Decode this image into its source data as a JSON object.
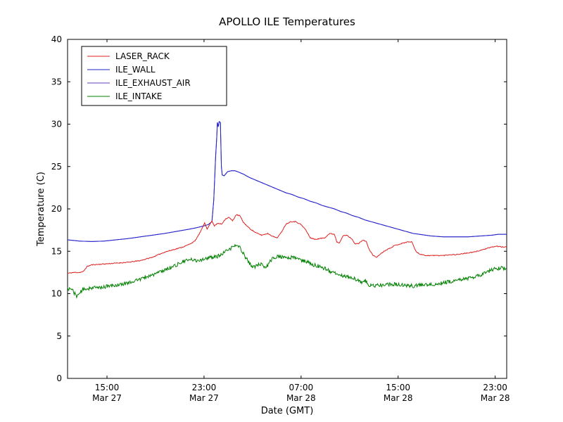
{
  "figure": {
    "title": "APOLLO ILE Temperatures",
    "background": "#ffffff",
    "frame_color": "#000000"
  },
  "chart_data": {
    "type": "line",
    "title": "APOLLO ILE Temperatures",
    "xlabel": "Date (GMT)",
    "ylabel": "Temperature (C)",
    "ylim": [
      0,
      40
    ],
    "xlim_hours": [
      0,
      36.2
    ],
    "grid": false,
    "legend_position": "upper-left",
    "yticks": [
      0,
      5,
      10,
      15,
      20,
      25,
      30,
      35,
      40
    ],
    "xticks": [
      {
        "t": 3.25,
        "time": "15:00",
        "date": "Mar 27"
      },
      {
        "t": 11.25,
        "time": "23:00",
        "date": "Mar 27"
      },
      {
        "t": 19.25,
        "time": "07:00",
        "date": "Mar 28"
      },
      {
        "t": 27.25,
        "time": "15:00",
        "date": "Mar 28"
      },
      {
        "t": 35.25,
        "time": "23:00",
        "date": "Mar 28"
      }
    ],
    "series": [
      {
        "name": "LASER_RACK",
        "color": "#dd2222",
        "noise": 0.05,
        "seed": 11,
        "points": [
          [
            0,
            12.4
          ],
          [
            0.5,
            12.5
          ],
          [
            1,
            12.5
          ],
          [
            1.3,
            12.6
          ],
          [
            1.6,
            13.2
          ],
          [
            2,
            13.4
          ],
          [
            3,
            13.5
          ],
          [
            4,
            13.6
          ],
          [
            5,
            13.7
          ],
          [
            6,
            13.9
          ],
          [
            7,
            14.3
          ],
          [
            8,
            14.9
          ],
          [
            9,
            15.3
          ],
          [
            9.5,
            15.5
          ],
          [
            10,
            15.8
          ],
          [
            10.5,
            16.2
          ],
          [
            11,
            17.4
          ],
          [
            11.3,
            18.4
          ],
          [
            11.5,
            17.6
          ],
          [
            11.9,
            18.6
          ],
          [
            12.1,
            18.0
          ],
          [
            12.4,
            18.3
          ],
          [
            12.7,
            18.2
          ],
          [
            13,
            18.8
          ],
          [
            13.3,
            19.0
          ],
          [
            13.6,
            18.6
          ],
          [
            13.9,
            19.3
          ],
          [
            14.2,
            19.2
          ],
          [
            14.5,
            18.4
          ],
          [
            15,
            17.7
          ],
          [
            15.5,
            17.2
          ],
          [
            16,
            16.9
          ],
          [
            16.5,
            17.1
          ],
          [
            17,
            16.7
          ],
          [
            17.3,
            16.6
          ],
          [
            17.6,
            17.2
          ],
          [
            18,
            18.2
          ],
          [
            18.4,
            18.5
          ],
          [
            18.8,
            18.5
          ],
          [
            19.2,
            18.2
          ],
          [
            19.6,
            17.6
          ],
          [
            20,
            16.6
          ],
          [
            20.4,
            16.4
          ],
          [
            20.8,
            16.5
          ],
          [
            21.2,
            16.6
          ],
          [
            21.6,
            17.1
          ],
          [
            22,
            17.0
          ],
          [
            22.2,
            16.1
          ],
          [
            22.4,
            16.0
          ],
          [
            22.7,
            16.8
          ],
          [
            23,
            16.9
          ],
          [
            23.4,
            16.5
          ],
          [
            23.7,
            15.9
          ],
          [
            24,
            15.9
          ],
          [
            24.3,
            16.3
          ],
          [
            24.6,
            16.2
          ],
          [
            24.9,
            15.1
          ],
          [
            25.2,
            14.5
          ],
          [
            25.5,
            14.3
          ],
          [
            25.8,
            14.7
          ],
          [
            26.2,
            15.1
          ],
          [
            26.6,
            15.4
          ],
          [
            27,
            15.7
          ],
          [
            27.5,
            15.9
          ],
          [
            28,
            16.1
          ],
          [
            28.4,
            16.1
          ],
          [
            28.7,
            15.0
          ],
          [
            29,
            14.7
          ],
          [
            29.5,
            14.5
          ],
          [
            30,
            14.5
          ],
          [
            31,
            14.5
          ],
          [
            31.5,
            14.6
          ],
          [
            32,
            14.6
          ],
          [
            32.5,
            14.7
          ],
          [
            33,
            14.8
          ],
          [
            33.5,
            14.9
          ],
          [
            34,
            15.1
          ],
          [
            34.5,
            15.3
          ],
          [
            35,
            15.5
          ],
          [
            35.4,
            15.6
          ],
          [
            35.8,
            15.5
          ],
          [
            36.2,
            15.5
          ]
        ]
      },
      {
        "name": "ILE_WALL",
        "color": "#2222cc",
        "noise": 0.0,
        "seed": 22,
        "points": [
          [
            0,
            16.35
          ],
          [
            1,
            16.2
          ],
          [
            2,
            16.15
          ],
          [
            3,
            16.2
          ],
          [
            4,
            16.35
          ],
          [
            5,
            16.5
          ],
          [
            6,
            16.7
          ],
          [
            7,
            16.9
          ],
          [
            8,
            17.1
          ],
          [
            9,
            17.35
          ],
          [
            10,
            17.6
          ],
          [
            10.7,
            17.8
          ],
          [
            11.25,
            18.0
          ],
          [
            11.6,
            18.15
          ],
          [
            11.9,
            18.5
          ],
          [
            12.05,
            21.0
          ],
          [
            12.2,
            26.0
          ],
          [
            12.3,
            28.5
          ],
          [
            12.35,
            30.2
          ],
          [
            12.42,
            29.7
          ],
          [
            12.5,
            30.3
          ],
          [
            12.6,
            30.2
          ],
          [
            12.68,
            25.0
          ],
          [
            12.75,
            24.0
          ],
          [
            12.9,
            23.9
          ],
          [
            13.2,
            24.4
          ],
          [
            13.5,
            24.5
          ],
          [
            13.8,
            24.5
          ],
          [
            14,
            24.4
          ],
          [
            14.5,
            24.1
          ],
          [
            15,
            23.7
          ],
          [
            15.5,
            23.4
          ],
          [
            16,
            23.1
          ],
          [
            16.5,
            22.8
          ],
          [
            17,
            22.5
          ],
          [
            17.5,
            22.2
          ],
          [
            18,
            21.9
          ],
          [
            18.5,
            21.7
          ],
          [
            19,
            21.4
          ],
          [
            19.5,
            21.2
          ],
          [
            20,
            20.9
          ],
          [
            20.5,
            20.7
          ],
          [
            21,
            20.4
          ],
          [
            21.5,
            20.2
          ],
          [
            22,
            20.0
          ],
          [
            22.5,
            19.7
          ],
          [
            23,
            19.5
          ],
          [
            23.5,
            19.2
          ],
          [
            24,
            19.0
          ],
          [
            24.5,
            18.7
          ],
          [
            25,
            18.5
          ],
          [
            25.5,
            18.3
          ],
          [
            26,
            18.1
          ],
          [
            26.5,
            17.9
          ],
          [
            27,
            17.7
          ],
          [
            27.5,
            17.5
          ],
          [
            28,
            17.3
          ],
          [
            28.5,
            17.1
          ],
          [
            29,
            17.0
          ],
          [
            29.5,
            16.9
          ],
          [
            30,
            16.8
          ],
          [
            31,
            16.7
          ],
          [
            32,
            16.7
          ],
          [
            33,
            16.7
          ],
          [
            34,
            16.8
          ],
          [
            35,
            16.9
          ],
          [
            35.5,
            17.0
          ],
          [
            36.2,
            17.0
          ]
        ]
      },
      {
        "name": "ILE_EXHAUST_AIR",
        "color": "#6040c0",
        "noise": 0.0,
        "seed": 33,
        "points": [
          [
            0,
            16.35
          ],
          [
            1,
            16.2
          ],
          [
            2,
            16.15
          ],
          [
            3,
            16.2
          ],
          [
            4,
            16.35
          ],
          [
            5,
            16.5
          ],
          [
            6,
            16.7
          ],
          [
            7,
            16.9
          ],
          [
            8,
            17.1
          ],
          [
            9,
            17.35
          ],
          [
            10,
            17.6
          ],
          [
            10.7,
            17.8
          ],
          [
            11.25,
            18.0
          ],
          [
            11.6,
            18.15
          ],
          [
            11.9,
            18.5
          ],
          [
            12.05,
            21.0
          ],
          [
            12.2,
            26.0
          ],
          [
            12.3,
            28.5
          ],
          [
            12.35,
            30.2
          ],
          [
            12.42,
            29.7
          ],
          [
            12.5,
            30.3
          ],
          [
            12.6,
            30.2
          ],
          [
            12.68,
            25.0
          ],
          [
            12.75,
            24.0
          ],
          [
            12.9,
            23.9
          ],
          [
            13.2,
            24.4
          ],
          [
            13.5,
            24.5
          ],
          [
            13.8,
            24.5
          ],
          [
            14,
            24.4
          ],
          [
            14.5,
            24.1
          ],
          [
            15,
            23.7
          ],
          [
            15.5,
            23.4
          ],
          [
            16,
            23.1
          ],
          [
            16.5,
            22.8
          ],
          [
            17,
            22.5
          ],
          [
            17.5,
            22.2
          ],
          [
            18,
            21.9
          ],
          [
            18.5,
            21.7
          ],
          [
            19,
            21.4
          ],
          [
            19.5,
            21.2
          ],
          [
            20,
            20.9
          ],
          [
            20.5,
            20.7
          ],
          [
            21,
            20.4
          ],
          [
            21.5,
            20.2
          ],
          [
            22,
            20.0
          ],
          [
            22.5,
            19.7
          ],
          [
            23,
            19.5
          ],
          [
            23.5,
            19.2
          ],
          [
            24,
            19.0
          ],
          [
            24.5,
            18.7
          ],
          [
            25,
            18.5
          ],
          [
            25.5,
            18.3
          ],
          [
            26,
            18.1
          ],
          [
            26.5,
            17.9
          ],
          [
            27,
            17.7
          ],
          [
            27.5,
            17.5
          ],
          [
            28,
            17.3
          ],
          [
            28.5,
            17.1
          ],
          [
            29,
            17.0
          ],
          [
            29.5,
            16.9
          ],
          [
            30,
            16.8
          ],
          [
            31,
            16.7
          ],
          [
            32,
            16.7
          ],
          [
            33,
            16.7
          ],
          [
            34,
            16.8
          ],
          [
            35,
            16.9
          ],
          [
            35.5,
            17.0
          ],
          [
            36.2,
            17.0
          ]
        ]
      },
      {
        "name": "ILE_INTAKE",
        "color": "#008000",
        "noise": 0.22,
        "seed": 44,
        "points": [
          [
            0,
            10.6
          ],
          [
            0.4,
            10.5
          ],
          [
            0.7,
            9.7
          ],
          [
            0.9,
            9.9
          ],
          [
            1.2,
            10.4
          ],
          [
            1.6,
            10.6
          ],
          [
            2,
            10.7
          ],
          [
            2.5,
            10.7
          ],
          [
            3,
            10.8
          ],
          [
            3.5,
            10.9
          ],
          [
            4,
            11.0
          ],
          [
            4.5,
            11.1
          ],
          [
            5,
            11.3
          ],
          [
            5.5,
            11.5
          ],
          [
            6,
            11.7
          ],
          [
            6.5,
            12.0
          ],
          [
            7,
            12.2
          ],
          [
            7.5,
            12.5
          ],
          [
            8,
            12.8
          ],
          [
            8.5,
            13.1
          ],
          [
            9,
            13.4
          ],
          [
            9.4,
            13.7
          ],
          [
            9.8,
            13.9
          ],
          [
            10.2,
            14.0
          ],
          [
            10.6,
            13.9
          ],
          [
            11,
            14.0
          ],
          [
            11.25,
            14.1
          ],
          [
            11.6,
            14.2
          ],
          [
            12,
            14.3
          ],
          [
            12.4,
            14.4
          ],
          [
            12.8,
            14.7
          ],
          [
            13.2,
            15.1
          ],
          [
            13.6,
            15.5
          ],
          [
            13.9,
            15.7
          ],
          [
            14.1,
            15.6
          ],
          [
            14.4,
            15.0
          ],
          [
            14.7,
            14.2
          ],
          [
            15,
            13.6
          ],
          [
            15.3,
            13.1
          ],
          [
            15.6,
            13.3
          ],
          [
            15.9,
            13.5
          ],
          [
            16.2,
            13.1
          ],
          [
            16.5,
            13.3
          ],
          [
            16.8,
            14.0
          ],
          [
            17.1,
            14.3
          ],
          [
            17.4,
            14.4
          ],
          [
            17.8,
            14.3
          ],
          [
            18.2,
            14.2
          ],
          [
            18.6,
            14.3
          ],
          [
            19,
            14.1
          ],
          [
            19.4,
            13.9
          ],
          [
            19.8,
            13.7
          ],
          [
            20.2,
            13.4
          ],
          [
            20.6,
            13.3
          ],
          [
            21,
            13.1
          ],
          [
            21.4,
            12.8
          ],
          [
            21.8,
            12.5
          ],
          [
            22.2,
            12.3
          ],
          [
            22.6,
            12.2
          ],
          [
            23,
            12.0
          ],
          [
            23.4,
            11.9
          ],
          [
            23.8,
            11.7
          ],
          [
            24.2,
            11.3
          ],
          [
            24.5,
            11.6
          ],
          [
            24.8,
            11.1
          ],
          [
            25.1,
            10.9
          ],
          [
            25.5,
            11.0
          ],
          [
            26,
            11.0
          ],
          [
            26.5,
            11.1
          ],
          [
            27,
            11.1
          ],
          [
            27.5,
            11.0
          ],
          [
            28,
            11.0
          ],
          [
            28.5,
            10.9
          ],
          [
            29,
            11.0
          ],
          [
            29.5,
            11.0
          ],
          [
            30,
            11.1
          ],
          [
            30.5,
            11.2
          ],
          [
            31,
            11.3
          ],
          [
            31.5,
            11.4
          ],
          [
            32,
            11.5
          ],
          [
            32.5,
            11.7
          ],
          [
            33,
            11.8
          ],
          [
            33.5,
            12.0
          ],
          [
            34,
            12.2
          ],
          [
            34.4,
            12.4
          ],
          [
            34.8,
            12.7
          ],
          [
            35.2,
            12.9
          ],
          [
            35.6,
            13.0
          ],
          [
            36.2,
            13.0
          ]
        ]
      }
    ]
  }
}
